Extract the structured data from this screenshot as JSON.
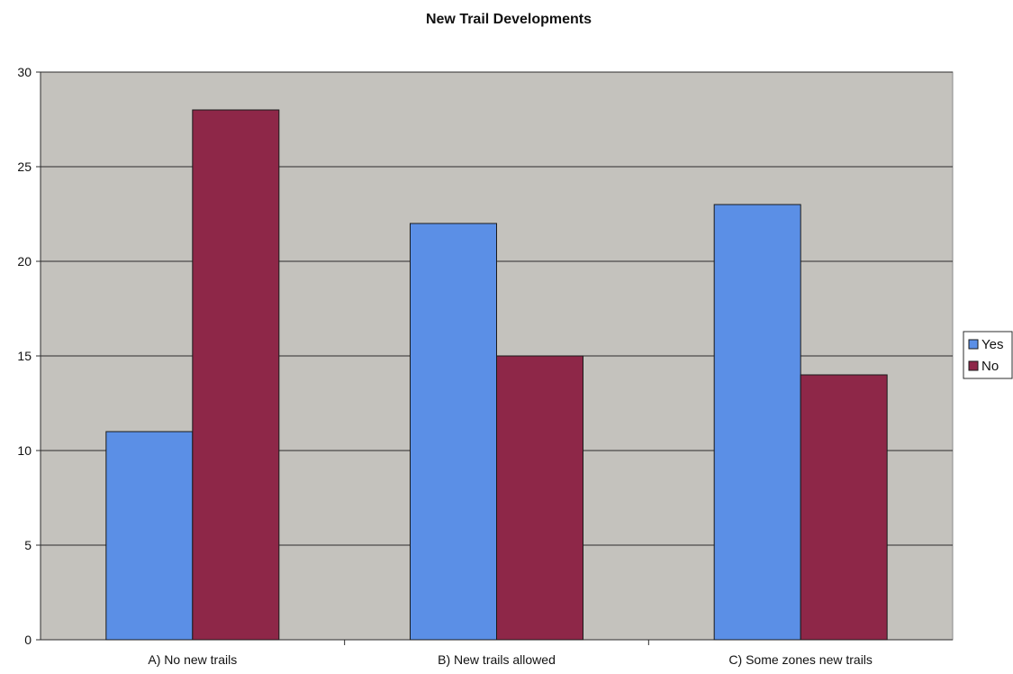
{
  "chart_data": {
    "type": "bar",
    "title": "New Trail Developments",
    "xlabel": "",
    "ylabel": "",
    "categories": [
      "A) No new trails",
      "B) New trails allowed",
      "C) Some zones new trails"
    ],
    "series": [
      {
        "name": "Yes",
        "values": [
          11,
          22,
          23
        ],
        "color": "#5b8fe6"
      },
      {
        "name": "No",
        "values": [
          28,
          15,
          14
        ],
        "color": "#8e2748"
      }
    ],
    "ylim": [
      0,
      30
    ],
    "yticks": [
      0,
      5,
      10,
      15,
      20,
      25,
      30
    ],
    "grid": true,
    "legend_position": "right",
    "plot_background": "#c4c2bd"
  }
}
